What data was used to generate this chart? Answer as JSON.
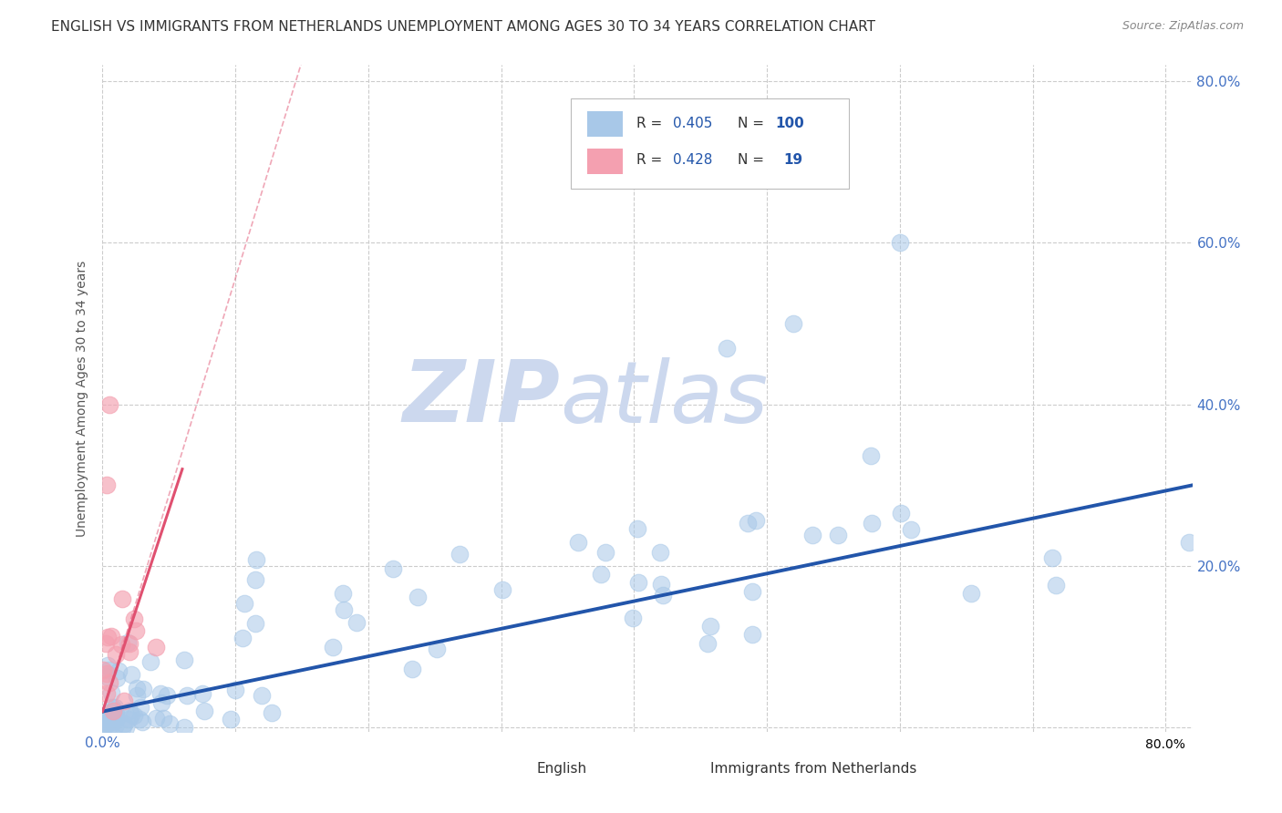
{
  "title": "ENGLISH VS IMMIGRANTS FROM NETHERLANDS UNEMPLOYMENT AMONG AGES 30 TO 34 YEARS CORRELATION CHART",
  "source": "Source: ZipAtlas.com",
  "ylabel": "Unemployment Among Ages 30 to 34 years",
  "xlim": [
    0.0,
    0.82
  ],
  "ylim": [
    -0.005,
    0.82
  ],
  "watermark_zip": "ZIP",
  "watermark_atlas": "atlas",
  "scatter_color_english": "#a8c8e8",
  "scatter_color_netherlands": "#f4a0b0",
  "line_color_english": "#2255aa",
  "line_color_netherlands": "#e05070",
  "dot_size": 180,
  "title_color": "#333333",
  "axis_label_color": "#555555",
  "tick_color": "#4472c4",
  "grid_color": "#cccccc",
  "watermark_color": "#ccd8ee",
  "background_color": "#ffffff",
  "R_english": "0.405",
  "N_english": "100",
  "R_netherlands": "0.428",
  "N_netherlands": "19",
  "legend_label_english": "English",
  "legend_label_netherlands": "Immigrants from Netherlands"
}
